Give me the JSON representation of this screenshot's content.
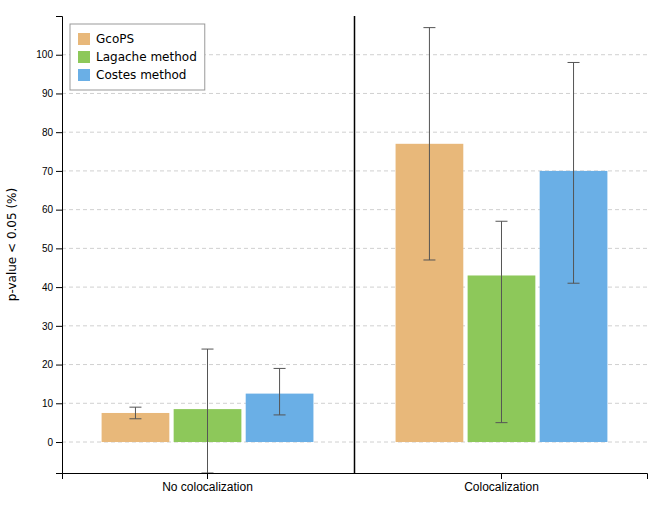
{
  "chart_data": {
    "type": "bar",
    "categories": [
      "No colocalization",
      "Colocalization"
    ],
    "series": [
      {
        "name": "GcoPS",
        "color": "#E8B87A",
        "values": [
          7.5,
          77.0
        ],
        "errors_low": [
          1.5,
          30.0
        ],
        "errors_high": [
          1.5,
          30.0
        ]
      },
      {
        "name": "Lagache method",
        "color": "#8DC85A",
        "values": [
          8.5,
          43.0
        ],
        "errors_low": [
          16.5,
          38.0
        ],
        "errors_high": [
          15.5,
          14.0
        ]
      },
      {
        "name": "Costes method",
        "color": "#6AAFE6",
        "values": [
          12.5,
          70.0
        ],
        "errors_low": [
          5.5,
          29.0
        ],
        "errors_high": [
          6.5,
          28.0
        ]
      }
    ],
    "ylabel": "p-value < 0.05 (%)",
    "ylim": [
      -8,
      110
    ],
    "yticks": [
      0,
      10,
      20,
      30,
      40,
      50,
      60,
      70,
      80,
      90,
      100
    ],
    "grid": true,
    "legend": "upper left"
  }
}
